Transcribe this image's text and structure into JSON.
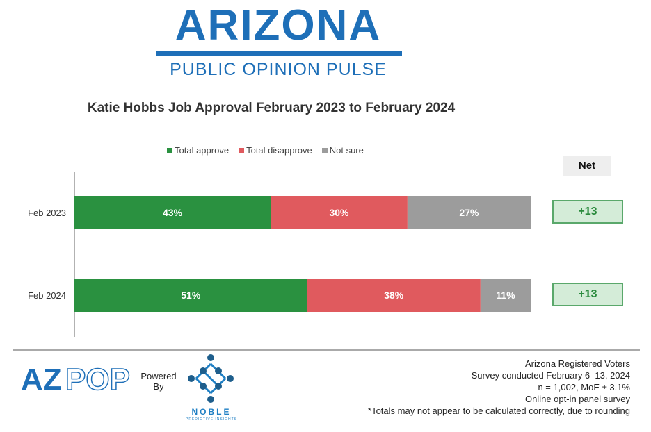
{
  "logo": {
    "title": "ARIZONA",
    "subtitle": "PUBLIC OPINION PULSE"
  },
  "net": {
    "header": "Net",
    "values": [
      "+13",
      "+13"
    ]
  },
  "footer": {
    "azpop": "AZPOP",
    "powered_by": "Powered By",
    "noble_name": "NOBLE",
    "noble_tagline": "PREDICTIVE INSIGHTS",
    "notes": [
      "Arizona Registered Voters",
      "Survey conducted February 6–13, 2024",
      "n = 1,002, MoE ± 3.1%",
      "Online opt-in panel survey",
      "*Totals may not appear to be calculated correctly, due to rounding"
    ]
  },
  "chart_data": {
    "type": "bar",
    "orientation": "horizontal",
    "stacked": true,
    "title": "Katie Hobbs Job Approval February 2023 to February 2024",
    "categories": [
      "Feb 2023",
      "Feb 2024"
    ],
    "series": [
      {
        "name": "Total approve",
        "values": [
          43,
          51
        ],
        "labels": [
          "43%",
          "51%"
        ],
        "color": "#2a9140"
      },
      {
        "name": "Total disapprove",
        "values": [
          30,
          38
        ],
        "labels": [
          "30%",
          "38%"
        ],
        "color": "#e05a5e"
      },
      {
        "name": "Not sure",
        "values": [
          27,
          11
        ],
        "labels": [
          "27%",
          "11%"
        ],
        "color": "#9c9c9c"
      }
    ],
    "xlim": [
      0,
      100
    ],
    "legend": "top",
    "grid": false
  }
}
